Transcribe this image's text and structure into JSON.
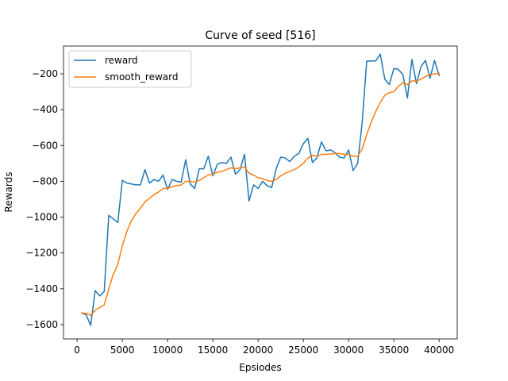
{
  "chart_data": {
    "type": "line",
    "title": "Curve of seed [516]",
    "xlabel": "Epsiodes",
    "ylabel": "Rewards",
    "xlim": [
      -1500,
      42000
    ],
    "ylim": [
      -1680,
      -45
    ],
    "xticks": [
      0,
      5000,
      10000,
      15000,
      20000,
      25000,
      30000,
      35000,
      40000
    ],
    "yticks": [
      -1600,
      -1400,
      -1200,
      -1000,
      -800,
      -600,
      -400,
      -200
    ],
    "ytick_labels": [
      "−1600",
      "−1400",
      "−1200",
      "−1000",
      "−800",
      "−600",
      "−400",
      "−200"
    ],
    "grid": false,
    "legend_position": "upper-left",
    "x": [
      500,
      1000,
      1500,
      2000,
      2500,
      3000,
      3500,
      4000,
      4500,
      5000,
      5500,
      6000,
      6500,
      7000,
      7500,
      8000,
      8500,
      9000,
      9500,
      10000,
      10500,
      11000,
      11500,
      12000,
      12500,
      13000,
      13500,
      14000,
      14500,
      15000,
      15500,
      16000,
      16500,
      17000,
      17500,
      18000,
      18500,
      19000,
      19500,
      20000,
      20500,
      21000,
      21500,
      22000,
      22500,
      23000,
      23500,
      24000,
      24500,
      25000,
      25500,
      26000,
      26500,
      27000,
      27500,
      28000,
      28500,
      29000,
      29500,
      30000,
      30500,
      31000,
      31500,
      32000,
      32500,
      33000,
      33500,
      34000,
      34500,
      35000,
      35500,
      36000,
      36500,
      37000,
      37500,
      38000,
      38500,
      39000,
      39500,
      40000
    ],
    "series": [
      {
        "name": "reward",
        "color": "#1f77b4",
        "values": [
          -1535,
          -1545,
          -1605,
          -1410,
          -1440,
          -1415,
          -990,
          -1010,
          -1030,
          -795,
          -810,
          -815,
          -820,
          -820,
          -735,
          -810,
          -790,
          -800,
          -765,
          -845,
          -790,
          -800,
          -805,
          -680,
          -815,
          -840,
          -730,
          -730,
          -660,
          -770,
          -705,
          -695,
          -700,
          -665,
          -760,
          -735,
          -650,
          -910,
          -820,
          -840,
          -800,
          -825,
          -835,
          -730,
          -665,
          -670,
          -690,
          -660,
          -645,
          -590,
          -560,
          -695,
          -670,
          -580,
          -630,
          -625,
          -640,
          -665,
          -670,
          -625,
          -740,
          -700,
          -470,
          -130,
          -128,
          -128,
          -90,
          -230,
          -260,
          -170,
          -175,
          -205,
          -335,
          -120,
          -255,
          -160,
          -125,
          -225,
          -125,
          -210
        ]
      },
      {
        "name": "smooth_reward",
        "color": "#ff7f0e",
        "values": [
          -1535,
          -1537,
          -1548,
          -1520,
          -1505,
          -1490,
          -1400,
          -1320,
          -1265,
          -1160,
          -1080,
          -1020,
          -980,
          -950,
          -915,
          -895,
          -875,
          -860,
          -840,
          -840,
          -830,
          -825,
          -820,
          -800,
          -800,
          -805,
          -795,
          -780,
          -765,
          -760,
          -750,
          -745,
          -735,
          -725,
          -730,
          -725,
          -720,
          -755,
          -765,
          -780,
          -785,
          -795,
          -800,
          -790,
          -770,
          -755,
          -745,
          -735,
          -720,
          -700,
          -670,
          -655,
          -660,
          -650,
          -650,
          -648,
          -645,
          -645,
          -650,
          -650,
          -660,
          -660,
          -620,
          -540,
          -470,
          -410,
          -360,
          -320,
          -305,
          -300,
          -270,
          -250,
          -260,
          -240,
          -240,
          -230,
          -215,
          -205,
          -200,
          -198
        ]
      }
    ]
  }
}
